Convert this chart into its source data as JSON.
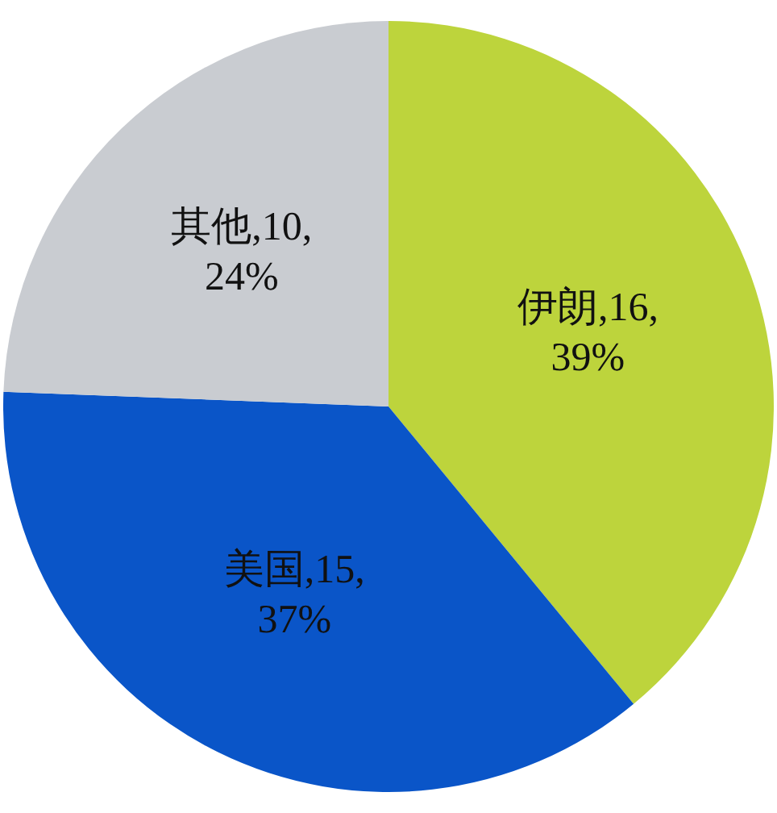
{
  "chart_data": {
    "type": "pie",
    "categories": [
      "伊朗",
      "美国",
      "其他"
    ],
    "values": [
      16,
      15,
      10
    ],
    "value_labels": [
      "16, 39%",
      "15, 37%",
      "10, 24%"
    ],
    "colors": [
      "#bdd43c",
      "#0a55c8",
      "#c9ccd1"
    ]
  }
}
